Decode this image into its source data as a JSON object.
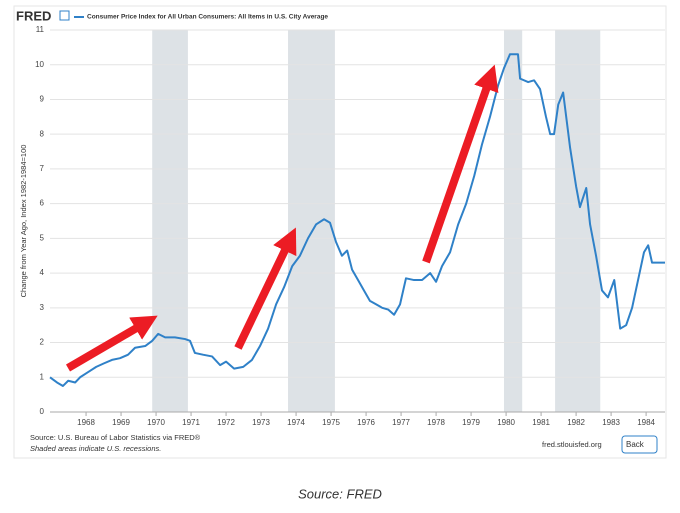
{
  "chart_data": {
    "type": "line",
    "logo": "FRED",
    "ylabel": "Change from Year Ago, Index 1982-1984=100",
    "source": "Source: U.S. Bureau of Labor Statistics via FRED®",
    "recession_note": "Shaded areas indicate U.S. recessions.",
    "site": "fred.stlouisfed.org",
    "button": "Back",
    "caption": "Source: FRED",
    "xlim": [
      1966.97,
      1984.54
    ],
    "xticks": [
      1968,
      1969,
      1970,
      1971,
      1972,
      1973,
      1974,
      1975,
      1976,
      1977,
      1978,
      1979,
      1980,
      1981,
      1982,
      1983,
      1984
    ],
    "ylim": [
      0,
      11
    ],
    "yticks": [
      0,
      1,
      2,
      3,
      4,
      5,
      6,
      7,
      8,
      9,
      10,
      11
    ],
    "grid": true,
    "recessions": [
      [
        1969.89,
        1970.91
      ],
      [
        1973.77,
        1975.11
      ],
      [
        1979.94,
        1980.46
      ],
      [
        1981.4,
        1982.69
      ]
    ],
    "recession_color": "#dde2e6",
    "x": [
      1966.97,
      1967.17,
      1967.34,
      1967.49,
      1967.69,
      1967.83,
      1968.06,
      1968.29,
      1968.51,
      1968.74,
      1968.97,
      1969.2,
      1969.4,
      1969.69,
      1969.89,
      1970.06,
      1970.26,
      1970.54,
      1970.83,
      1970.97,
      1971.11,
      1971.34,
      1971.6,
      1971.83,
      1972.0,
      1972.23,
      1972.49,
      1972.74,
      1972.97,
      1973.2,
      1973.43,
      1973.66,
      1973.89,
      1974.11,
      1974.34,
      1974.57,
      1974.8,
      1974.97,
      1975.14,
      1975.31,
      1975.46,
      1975.6,
      1975.77,
      1975.94,
      1976.11,
      1976.29,
      1976.46,
      1976.63,
      1976.8,
      1976.97,
      1977.14,
      1977.37,
      1977.6,
      1977.83,
      1978.0,
      1978.17,
      1978.4,
      1978.63,
      1978.86,
      1979.09,
      1979.31,
      1979.54,
      1979.77,
      1979.94,
      1980.11,
      1980.34,
      1980.4,
      1980.63,
      1980.8,
      1980.97,
      1981.14,
      1981.26,
      1981.37,
      1981.49,
      1981.63,
      1981.83,
      1982.0,
      1982.11,
      1982.29,
      1982.4,
      1982.57,
      1982.74,
      1982.91,
      1983.09,
      1983.26,
      1983.43,
      1983.6,
      1983.77,
      1983.94,
      1984.06,
      1984.17,
      1984.54
    ],
    "series": [
      {
        "name": "Consumer Price Index for All Urban Consumers: All Items in U.S. City Average",
        "color": "#2f81c8",
        "values": [
          1.0,
          0.85,
          0.75,
          0.9,
          0.85,
          1.0,
          1.15,
          1.3,
          1.4,
          1.5,
          1.55,
          1.65,
          1.85,
          1.9,
          2.05,
          2.25,
          2.15,
          2.15,
          2.1,
          2.05,
          1.7,
          1.65,
          1.6,
          1.35,
          1.45,
          1.25,
          1.3,
          1.5,
          1.9,
          2.4,
          3.1,
          3.6,
          4.2,
          4.5,
          5.0,
          5.4,
          5.55,
          5.45,
          4.9,
          4.5,
          4.65,
          4.1,
          3.8,
          3.5,
          3.2,
          3.1,
          3.0,
          2.95,
          2.8,
          3.1,
          3.85,
          3.8,
          3.8,
          4.0,
          3.75,
          4.2,
          4.6,
          5.4,
          6.0,
          6.8,
          7.7,
          8.5,
          9.4,
          9.9,
          10.3,
          10.3,
          9.6,
          9.5,
          9.55,
          9.3,
          8.5,
          8.0,
          8.0,
          8.85,
          9.2,
          7.6,
          6.5,
          5.9,
          6.45,
          5.4,
          4.5,
          3.5,
          3.3,
          3.8,
          2.4,
          2.5,
          3.0,
          3.8,
          4.6,
          4.8,
          4.3,
          4.3
        ]
      }
    ]
  }
}
